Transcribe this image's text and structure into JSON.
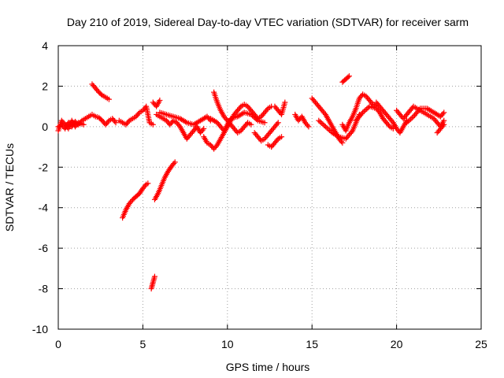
{
  "chart_data": {
    "type": "scatter",
    "title": "Day 210 of 2019, Sidereal Day-to-day VTEC variation (SDTVAR) for receiver sarm",
    "xlabel": "GPS time / hours",
    "ylabel": "SDTVAR / TECUs",
    "xlim": [
      0,
      25
    ],
    "ylim": [
      -10,
      4
    ],
    "xticks": [
      0,
      5,
      10,
      15,
      20,
      25
    ],
    "yticks": [
      4,
      2,
      0,
      -2,
      -4,
      -6,
      -8,
      -10
    ],
    "xtick_labels": [
      "0",
      "5",
      "10",
      "15",
      "20",
      "25"
    ],
    "ytick_labels": [
      "4",
      "2",
      "0",
      "-2",
      "-4",
      "-6",
      "-8",
      "-10"
    ],
    "grid": true,
    "marker": "+",
    "color": "#ff0000",
    "series": [
      {
        "name": "SDTVAR",
        "segments": [
          [
            [
              0.0,
              0.0
            ],
            [
              0.2,
              0.1
            ],
            [
              0.4,
              -0.1
            ],
            [
              0.6,
              0.2
            ],
            [
              0.8,
              0.0
            ],
            [
              1.0,
              0.25
            ],
            [
              1.2,
              0.1
            ],
            [
              1.4,
              0.3
            ],
            [
              1.6,
              0.4
            ],
            [
              1.8,
              0.5
            ],
            [
              2.0,
              0.6
            ],
            [
              2.2,
              0.5
            ],
            [
              2.4,
              0.45
            ],
            [
              2.6,
              0.3
            ],
            [
              2.8,
              0.1
            ],
            [
              3.0,
              0.3
            ],
            [
              3.2,
              0.4
            ],
            [
              3.4,
              0.2
            ]
          ],
          [
            [
              0.0,
              -0.2
            ],
            [
              0.2,
              0.3
            ],
            [
              0.4,
              0.1
            ],
            [
              0.6,
              -0.1
            ],
            [
              0.8,
              0.3
            ],
            [
              1.0,
              0.0
            ],
            [
              1.2,
              0.2
            ],
            [
              1.5,
              0.1
            ]
          ],
          [
            [
              2.0,
              2.1
            ],
            [
              2.2,
              1.9
            ],
            [
              2.4,
              1.7
            ],
            [
              2.6,
              1.55
            ],
            [
              2.8,
              1.45
            ],
            [
              3.0,
              1.35
            ]
          ],
          [
            [
              3.6,
              0.3
            ],
            [
              3.8,
              0.2
            ],
            [
              4.0,
              0.1
            ],
            [
              4.2,
              0.3
            ],
            [
              4.4,
              0.4
            ],
            [
              4.6,
              0.5
            ],
            [
              4.8,
              0.7
            ],
            [
              5.0,
              0.8
            ],
            [
              5.2,
              1.0
            ],
            [
              5.4,
              0.2
            ],
            [
              5.6,
              0.1
            ]
          ],
          [
            [
              3.8,
              -4.5
            ],
            [
              4.0,
              -4.1
            ],
            [
              4.2,
              -3.8
            ],
            [
              4.4,
              -3.6
            ],
            [
              4.6,
              -3.45
            ],
            [
              4.8,
              -3.3
            ],
            [
              5.0,
              -3.05
            ],
            [
              5.2,
              -2.85
            ],
            [
              5.3,
              -2.8
            ]
          ],
          [
            [
              5.5,
              -8.0
            ],
            [
              5.6,
              -7.7
            ],
            [
              5.7,
              -7.4
            ]
          ],
          [
            [
              5.7,
              -3.6
            ],
            [
              5.9,
              -3.3
            ],
            [
              6.1,
              -2.9
            ],
            [
              6.3,
              -2.5
            ],
            [
              6.5,
              -2.2
            ],
            [
              6.7,
              -1.95
            ],
            [
              6.9,
              -1.75
            ]
          ],
          [
            [
              5.6,
              1.2
            ],
            [
              5.8,
              1.0
            ],
            [
              6.0,
              1.3
            ]
          ],
          [
            [
              5.8,
              0.6
            ],
            [
              6.0,
              0.5
            ],
            [
              6.2,
              0.4
            ],
            [
              6.4,
              0.3
            ],
            [
              6.6,
              0.1
            ],
            [
              6.8,
              0.3
            ],
            [
              7.0,
              0.2
            ],
            [
              7.2,
              0.0
            ],
            [
              7.4,
              -0.3
            ],
            [
              7.6,
              -0.6
            ],
            [
              7.8,
              -0.4
            ],
            [
              8.0,
              -0.2
            ],
            [
              8.2,
              0.0
            ],
            [
              8.4,
              -0.3
            ],
            [
              8.6,
              -0.1
            ]
          ],
          [
            [
              6.0,
              0.7
            ],
            [
              6.4,
              0.6
            ],
            [
              6.8,
              0.5
            ],
            [
              7.2,
              0.4
            ],
            [
              7.6,
              0.2
            ],
            [
              8.0,
              0.1
            ],
            [
              8.4,
              0.3
            ],
            [
              8.8,
              0.5
            ],
            [
              9.0,
              0.3
            ]
          ],
          [
            [
              8.6,
              -0.5
            ],
            [
              8.8,
              -0.8
            ],
            [
              9.0,
              -0.9
            ],
            [
              9.2,
              -1.1
            ],
            [
              9.4,
              -0.9
            ],
            [
              9.6,
              -0.6
            ],
            [
              9.8,
              -0.3
            ],
            [
              10.0,
              0.0
            ],
            [
              10.2,
              0.3
            ],
            [
              10.4,
              0.6
            ],
            [
              10.6,
              0.8
            ],
            [
              10.8,
              1.0
            ],
            [
              11.0,
              1.1
            ],
            [
              11.2,
              1.0
            ],
            [
              11.4,
              0.8
            ],
            [
              11.6,
              0.6
            ],
            [
              11.8,
              0.4
            ],
            [
              12.0,
              0.5
            ],
            [
              12.2,
              0.7
            ],
            [
              12.4,
              0.9
            ],
            [
              12.6,
              1.0
            ]
          ],
          [
            [
              9.2,
              1.7
            ],
            [
              9.4,
              1.2
            ],
            [
              9.6,
              0.8
            ],
            [
              9.8,
              0.5
            ],
            [
              10.0,
              0.3
            ],
            [
              10.2,
              0.1
            ],
            [
              10.4,
              -0.1
            ],
            [
              10.6,
              -0.3
            ],
            [
              10.8,
              -0.2
            ],
            [
              11.0,
              0.0
            ],
            [
              11.2,
              0.2
            ],
            [
              11.4,
              0.1
            ]
          ],
          [
            [
              9.0,
              0.4
            ],
            [
              9.4,
              0.2
            ],
            [
              9.8,
              -0.2
            ],
            [
              10.2,
              0.4
            ],
            [
              10.6,
              0.5
            ],
            [
              11.0,
              0.7
            ],
            [
              11.4,
              0.6
            ],
            [
              11.8,
              0.3
            ],
            [
              12.2,
              0.2
            ]
          ],
          [
            [
              11.6,
              -0.3
            ],
            [
              11.8,
              -0.5
            ],
            [
              12.0,
              -0.7
            ],
            [
              12.2,
              -0.6
            ],
            [
              12.4,
              -0.4
            ],
            [
              12.6,
              -0.2
            ],
            [
              12.8,
              0.0
            ],
            [
              13.0,
              0.2
            ]
          ],
          [
            [
              12.4,
              -0.9
            ],
            [
              12.6,
              -1.0
            ],
            [
              12.8,
              -0.8
            ],
            [
              13.0,
              -0.6
            ],
            [
              13.2,
              -0.5
            ]
          ],
          [
            [
              12.8,
              1.0
            ],
            [
              13.0,
              0.8
            ],
            [
              13.2,
              0.6
            ],
            [
              13.4,
              1.2
            ]
          ],
          [
            [
              14.0,
              0.6
            ],
            [
              14.2,
              0.3
            ],
            [
              14.4,
              0.5
            ],
            [
              14.6,
              0.2
            ],
            [
              14.8,
              0.0
            ]
          ],
          [
            [
              15.0,
              1.4
            ],
            [
              15.2,
              1.2
            ],
            [
              15.4,
              1.0
            ],
            [
              15.6,
              0.8
            ],
            [
              15.8,
              0.6
            ],
            [
              16.0,
              0.3
            ],
            [
              16.2,
              0.0
            ],
            [
              16.4,
              -0.3
            ],
            [
              16.6,
              -0.6
            ],
            [
              16.8,
              -0.8
            ]
          ],
          [
            [
              15.4,
              0.3
            ],
            [
              15.8,
              0.0
            ],
            [
              16.2,
              -0.3
            ],
            [
              16.6,
              -0.5
            ],
            [
              17.0,
              -0.6
            ],
            [
              17.4,
              -0.2
            ],
            [
              17.6,
              0.2
            ],
            [
              17.8,
              0.6
            ]
          ],
          [
            [
              16.8,
              2.2
            ],
            [
              17.0,
              2.35
            ],
            [
              17.2,
              2.5
            ]
          ],
          [
            [
              16.8,
              0.1
            ],
            [
              17.0,
              -0.2
            ],
            [
              17.2,
              0.2
            ],
            [
              17.4,
              0.5
            ],
            [
              17.6,
              0.9
            ],
            [
              17.8,
              1.4
            ],
            [
              18.0,
              1.6
            ],
            [
              18.2,
              1.5
            ],
            [
              18.4,
              1.3
            ],
            [
              18.6,
              1.1
            ],
            [
              18.8,
              1.0
            ]
          ],
          [
            [
              17.6,
              0.3
            ],
            [
              18.0,
              0.7
            ],
            [
              18.4,
              1.0
            ],
            [
              18.8,
              0.9
            ],
            [
              19.0,
              0.7
            ],
            [
              19.2,
              0.4
            ],
            [
              19.4,
              0.2
            ],
            [
              19.6,
              0.0
            ],
            [
              19.8,
              -0.1
            ]
          ],
          [
            [
              18.8,
              1.2
            ],
            [
              19.0,
              1.0
            ],
            [
              19.2,
              0.8
            ],
            [
              19.4,
              0.6
            ],
            [
              19.6,
              0.4
            ],
            [
              19.8,
              0.2
            ],
            [
              20.0,
              -0.1
            ],
            [
              20.2,
              -0.3
            ],
            [
              20.4,
              0.0
            ],
            [
              20.6,
              0.3
            ]
          ],
          [
            [
              20.0,
              0.8
            ],
            [
              20.2,
              0.6
            ],
            [
              20.4,
              0.4
            ],
            [
              20.6,
              0.6
            ],
            [
              20.8,
              0.8
            ],
            [
              21.0,
              1.0
            ],
            [
              21.2,
              0.9
            ],
            [
              21.4,
              0.8
            ],
            [
              21.6,
              0.7
            ],
            [
              21.8,
              0.6
            ],
            [
              22.0,
              0.5
            ],
            [
              22.2,
              0.4
            ],
            [
              22.4,
              0.2
            ],
            [
              22.6,
              0.0
            ],
            [
              22.8,
              0.3
            ]
          ],
          [
            [
              20.6,
              0.2
            ],
            [
              21.0,
              0.5
            ],
            [
              21.4,
              0.9
            ],
            [
              21.8,
              0.9
            ],
            [
              22.2,
              0.7
            ],
            [
              22.6,
              0.5
            ],
            [
              22.8,
              0.7
            ]
          ],
          [
            [
              22.4,
              -0.3
            ],
            [
              22.6,
              -0.1
            ],
            [
              22.8,
              0.1
            ]
          ]
        ]
      }
    ]
  }
}
